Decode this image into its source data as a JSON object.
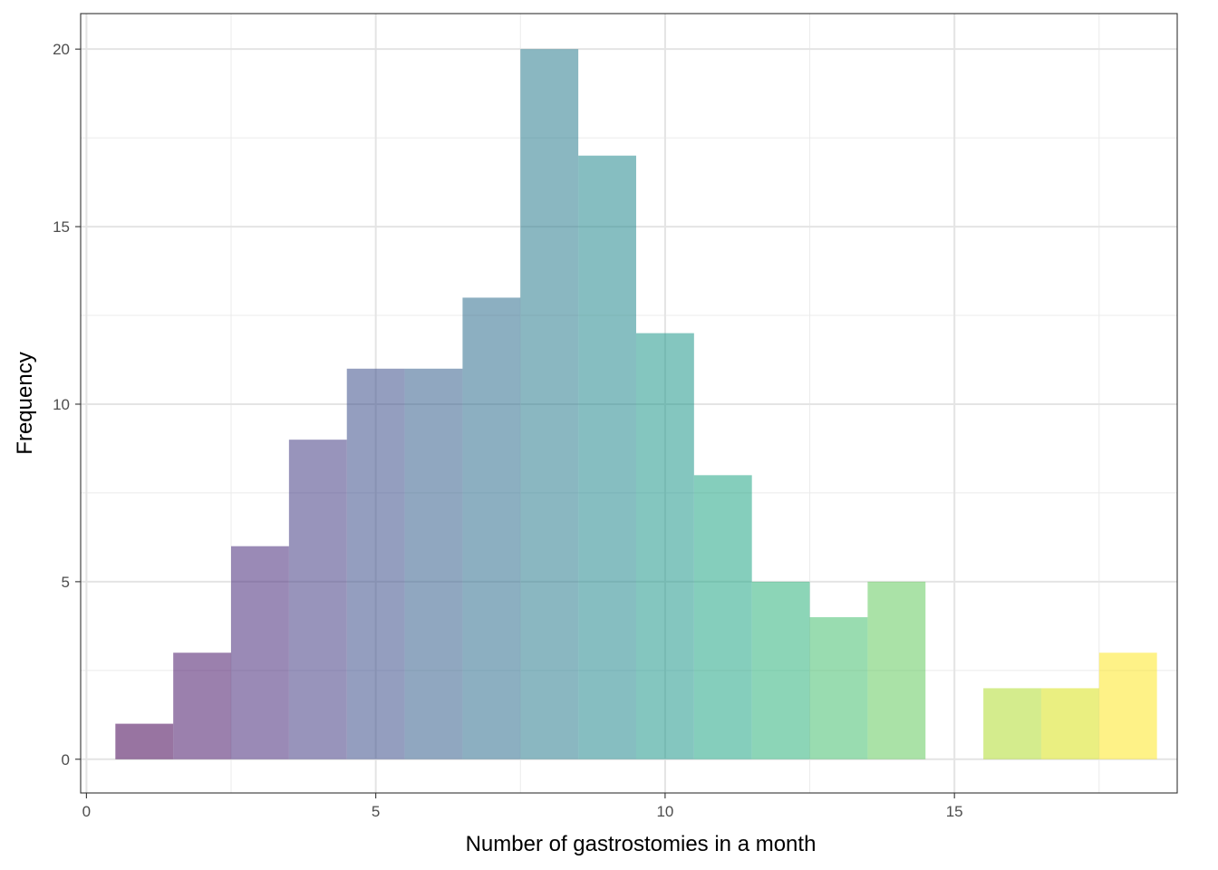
{
  "chart_data": {
    "type": "bar",
    "title": "",
    "xlabel": "Number of gastrostomies in a month",
    "ylabel": "Frequency",
    "xlim": [
      -0.1,
      18.85
    ],
    "ylim": [
      -0.95,
      21
    ],
    "x": [
      1,
      2,
      3,
      4,
      5,
      6,
      7,
      8,
      9,
      10,
      11,
      12,
      13,
      14,
      15,
      16,
      17,
      18
    ],
    "values": [
      1,
      3,
      6,
      9,
      11,
      11,
      13,
      20,
      17,
      12,
      8,
      5,
      4,
      5,
      0,
      2,
      2,
      3
    ],
    "bin_width": 1,
    "x_ticks": [
      0,
      5,
      10,
      15
    ],
    "x_tick_labels": [
      "0",
      "5",
      "10",
      "15"
    ],
    "y_ticks": [
      0,
      5,
      10,
      15,
      20
    ],
    "y_tick_labels": [
      "0",
      "5",
      "10",
      "15",
      "20"
    ],
    "grid": true,
    "colors": [
      "#440154",
      "#481769",
      "#472a7a",
      "#433d84",
      "#3d4e8a",
      "#355e8d",
      "#2e6d8e",
      "#297b8e",
      "#23898e",
      "#1f978b",
      "#21a585",
      "#2eb37c",
      "#46c06f",
      "#65cb5e",
      "#89d548",
      "#b0dd2f",
      "#d8e219",
      "#fde725"
    ],
    "bar_opacity": 0.55
  }
}
